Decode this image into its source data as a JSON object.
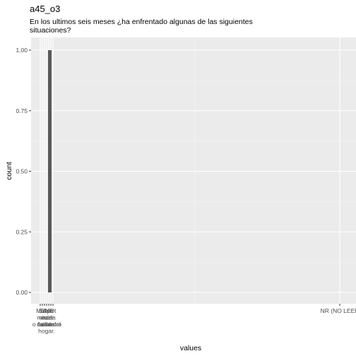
{
  "chart_data": {
    "type": "bar",
    "title": "a45_o3",
    "subtitle_lines": [
      "En los ultimos seis meses ¿ha enfrentado algunas de las siguientes",
      "situaciones?"
    ],
    "xlabel": "values",
    "ylabel": "count",
    "ylim": [
      0,
      1.05
    ],
    "y_ticks": [
      "0.00",
      "0.25",
      "0.50",
      "0.75",
      "1.00"
    ],
    "y_tick_values": [
      0,
      0.25,
      0.5,
      0.75,
      1.0
    ],
    "bar_value": 1,
    "grid": true,
    "background": "#ebebeb",
    "bar_color": "#595959",
    "x_tick_labels_left": [
      [
        "Mu",
        "mi",
        "de"
      ],
      [
        "Se",
        "en",
        "si"
      ],
      [
        "Se",
        "cu",
        "cu"
      ],
      [
        "Ap",
        "cu",
        "o fuera del",
        "hogar."
      ],
      [
        "Ne",
        "da",
        "fue"
      ],
      [
        "Pr",
        "di",
        "de"
      ],
      [
        "Ot",
        "ra",
        "dentro"
      ]
    ],
    "x_tick_label_right": "NR (NO LEER"
  }
}
